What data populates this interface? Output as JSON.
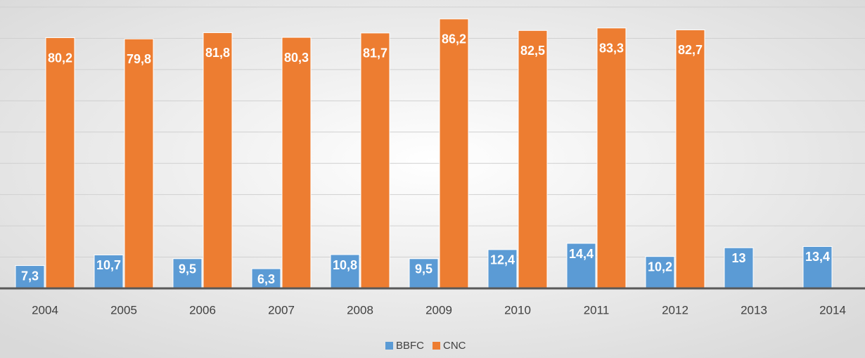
{
  "chart_data": {
    "type": "bar",
    "categories": [
      "2004",
      "2005",
      "2006",
      "2007",
      "2008",
      "2009",
      "2010",
      "2011",
      "2012",
      "2013",
      "2014"
    ],
    "series": [
      {
        "name": "BBFC",
        "color": "#5b9bd5",
        "values": [
          7.3,
          10.7,
          9.5,
          6.3,
          10.8,
          9.5,
          12.4,
          14.4,
          10.2,
          13,
          13.4
        ],
        "value_labels": [
          "7,3",
          "10,7",
          "9,5",
          "6,3",
          "10,8",
          "9,5",
          "12,4",
          "14,4",
          "10,2",
          "13",
          "13,4"
        ]
      },
      {
        "name": "CNC",
        "color": "#ed7d31",
        "values": [
          80.2,
          79.8,
          81.8,
          80.3,
          81.7,
          86.2,
          82.5,
          83.3,
          82.7,
          null,
          null
        ],
        "value_labels": [
          "80,2",
          "79,8",
          "81,8",
          "80,3",
          "81,7",
          "86,2",
          "82,5",
          "83,3",
          "82,7",
          null,
          null
        ]
      }
    ],
    "ylim": [
      0,
      90
    ],
    "yticks": [
      0,
      10,
      20,
      30,
      40,
      50,
      60,
      70,
      80,
      90
    ],
    "grid": true,
    "legend": "bottom"
  }
}
